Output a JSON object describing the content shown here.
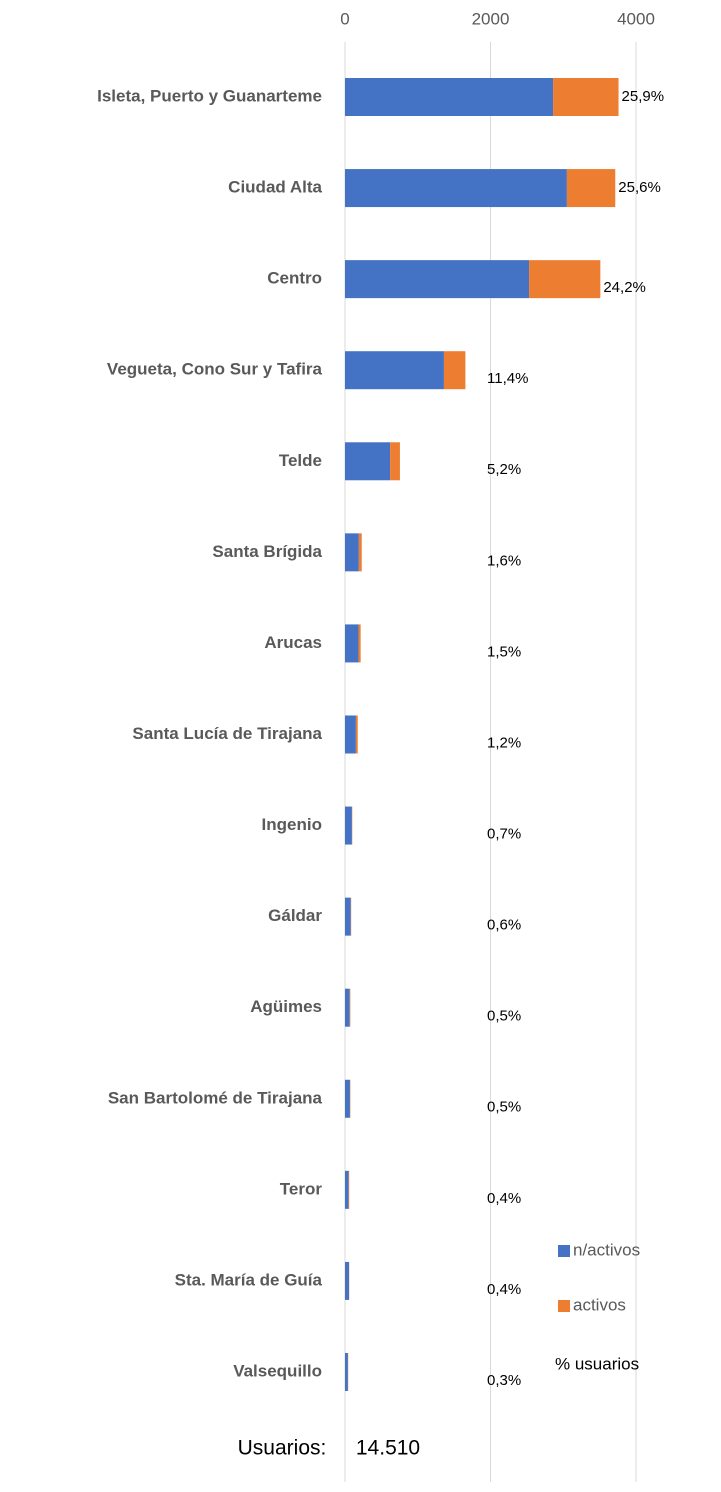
{
  "chart_data": {
    "type": "stacked_barh",
    "categories": [
      "Isleta, Puerto y Guanarteme",
      "Ciudad Alta",
      "Centro",
      "Vegueta, Cono Sur y Tafira",
      "Telde",
      "Santa Brígida",
      "Arucas",
      "Santa Lucía de Tirajana",
      "Ingenio",
      "Gáldar",
      "Agüimes",
      "San Bartolomé de Tirajana",
      "Teror",
      "Sta. María de Guía",
      "Valsequillo"
    ],
    "series": [
      {
        "name": "n/activos",
        "color": "#4472c4",
        "values": [
          2860,
          3050,
          2530,
          1360,
          620,
          190,
          185,
          150,
          95,
          80,
          65,
          68,
          50,
          55,
          40
        ]
      },
      {
        "name": "activos",
        "color": "#ed7d31",
        "values": [
          900,
          665,
          980,
          295,
          135,
          40,
          30,
          25,
          5,
          5,
          8,
          5,
          8,
          3,
          4
        ]
      }
    ],
    "percent": {
      "name": "% usuarios",
      "values": [
        25.9,
        25.6,
        24.2,
        11.4,
        5.2,
        1.6,
        1.5,
        1.2,
        0.7,
        0.6,
        0.5,
        0.5,
        0.4,
        0.4,
        0.3
      ],
      "value_labels": [
        "25,9%",
        "25,6%",
        "24,2%",
        "11,4%",
        "5,2%",
        "1,6%",
        "1,5%",
        "1,2%",
        "0,7%",
        "0,6%",
        "0,5%",
        "0,5%",
        "0,4%",
        "0,4%",
        "0,3%"
      ]
    },
    "xlim": [
      0,
      4000
    ],
    "xticks": [
      0,
      2000,
      4000
    ],
    "grid": true,
    "footer_label": "Usuarios:",
    "total": {
      "value": 14510,
      "label": "14.510"
    }
  }
}
